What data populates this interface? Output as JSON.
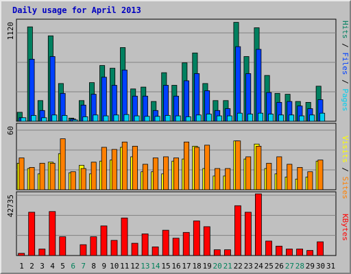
{
  "title": "Daily usage for April 2013",
  "chart_data": [
    {
      "type": "bar",
      "panel": "top",
      "ymax_label": "1120",
      "ymax": 1120,
      "categories": [
        "1",
        "2",
        "3",
        "4",
        "5",
        "6",
        "7",
        "8",
        "9",
        "10",
        "11",
        "12",
        "13",
        "14",
        "15",
        "16",
        "17",
        "18",
        "19",
        "20",
        "21",
        "22",
        "23",
        "24",
        "25",
        "26",
        "27",
        "28",
        "29",
        "30",
        "31"
      ],
      "series": [
        {
          "name": "Hits",
          "color": "#008060",
          "values": [
            100,
            1050,
            230,
            950,
            420,
            35,
            230,
            430,
            620,
            590,
            820,
            360,
            380,
            220,
            540,
            400,
            650,
            760,
            420,
            230,
            230,
            1100,
            720,
            1040,
            510,
            310,
            300,
            220,
            210,
            390,
            0
          ]
        },
        {
          "name": "Files",
          "color": "#0040ff",
          "values": [
            40,
            690,
            120,
            720,
            310,
            25,
            180,
            300,
            490,
            400,
            570,
            280,
            280,
            120,
            400,
            280,
            450,
            530,
            340,
            120,
            140,
            830,
            530,
            800,
            320,
            210,
            220,
            170,
            140,
            240,
            0
          ]
        },
        {
          "name": "Pages",
          "color": "#00d0f0",
          "values": [
            40,
            65,
            40,
            70,
            65,
            15,
            50,
            70,
            60,
            70,
            75,
            60,
            55,
            55,
            65,
            60,
            50,
            70,
            80,
            60,
            60,
            90,
            80,
            90,
            80,
            70,
            70,
            60,
            70,
            90,
            0
          ]
        }
      ],
      "legend_labels": [
        "Pages",
        "Files",
        "Hits"
      ]
    },
    {
      "type": "bar",
      "panel": "middle",
      "ymax_label": "60",
      "ymax": 60,
      "categories": [
        "1",
        "2",
        "3",
        "4",
        "5",
        "6",
        "7",
        "8",
        "9",
        "10",
        "11",
        "12",
        "13",
        "14",
        "15",
        "16",
        "17",
        "18",
        "19",
        "20",
        "21",
        "22",
        "23",
        "24",
        "25",
        "26",
        "27",
        "28",
        "29",
        "30",
        "31"
      ],
      "series": [
        {
          "name": "Visits",
          "color": "#ffff00",
          "values": [
            25,
            20,
            15,
            26,
            34,
            16,
            23,
            15,
            27,
            28,
            40,
            31,
            17,
            17,
            15,
            27,
            29,
            41,
            20,
            13,
            13,
            46,
            29,
            43,
            20,
            15,
            12,
            10,
            12,
            27,
            0
          ]
        },
        {
          "name": "Sites",
          "color": "#ff8000",
          "values": [
            30,
            21,
            25,
            25,
            48,
            17,
            20,
            26,
            40,
            38,
            45,
            41,
            24,
            30,
            31,
            30,
            45,
            40,
            42,
            20,
            20,
            46,
            31,
            41,
            25,
            31,
            24,
            21,
            17,
            28,
            0
          ]
        }
      ],
      "legend_labels": [
        "Sites",
        "Visits"
      ]
    },
    {
      "type": "bar",
      "panel": "bottom",
      "ymax_label": "42735",
      "ymax": 42735,
      "categories": [
        "1",
        "2",
        "3",
        "4",
        "5",
        "6",
        "7",
        "8",
        "9",
        "10",
        "11",
        "12",
        "13",
        "14",
        "15",
        "16",
        "17",
        "18",
        "19",
        "20",
        "21",
        "22",
        "23",
        "24",
        "25",
        "26",
        "27",
        "28",
        "29",
        "30",
        "31"
      ],
      "series": [
        {
          "name": "KBytes",
          "color": "#ff0000",
          "values": [
            1500,
            30000,
            4500,
            30500,
            13000,
            0,
            7500,
            13000,
            20500,
            10500,
            26000,
            8500,
            15000,
            6000,
            17500,
            12000,
            16000,
            24000,
            20000,
            4000,
            4000,
            34500,
            30000,
            42735,
            10000,
            6500,
            4500,
            4500,
            3500,
            9500,
            0
          ]
        }
      ],
      "legend_labels": [
        "KBytes"
      ]
    }
  ],
  "weekend_days": [
    "6",
    "7",
    "13",
    "14",
    "20",
    "21",
    "27",
    "28"
  ],
  "colors": {
    "bg": "#c0c0c0",
    "title": "#0000c0",
    "text": "#000000",
    "weekend": "#00805a",
    "grid": "#808080"
  }
}
